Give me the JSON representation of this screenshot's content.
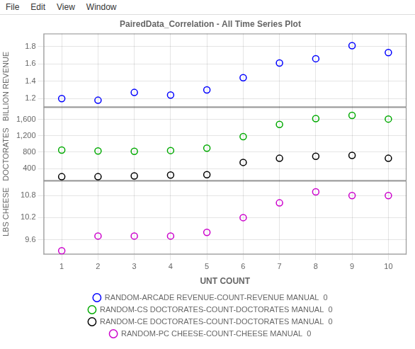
{
  "chart_data": [
    {
      "type": "scatter",
      "title": "PairedData_Correlation - All Time Series Plot",
      "annotations": [
        "File",
        "Edit",
        "View",
        "Window"
      ],
      "ylabel": "LBS CHEESE   DOCTORATES   BILLION REVENUE",
      "legend": "bottom",
      "marker": "circle",
      "grid": true,
      "tick_labels": "y",
      "x": [
        1,
        2,
        3,
        4,
        5,
        6,
        7,
        8,
        9,
        10
      ],
      "ylim": [
        1.1,
        1.95
      ],
      "yticks": [
        1.2,
        1.4,
        1.6,
        1.8
      ],
      "series": [
        {
          "name": "RANDOM-ARCADE REVENUE-COUNT-REVENUE MANUAL  0",
          "color": "#0000FF",
          "values": [
            1.2,
            1.18,
            1.27,
            1.24,
            1.3,
            1.44,
            1.61,
            1.66,
            1.81,
            1.73
          ]
        }
      ]
    },
    {
      "type": "scatter",
      "marker": "circle",
      "grid": true,
      "tick_labels": "y",
      "x": [
        1,
        2,
        3,
        4,
        5,
        6,
        7,
        8,
        9,
        10
      ],
      "ylim": [
        100,
        1900
      ],
      "yticks": [
        400,
        800,
        {
          "value": 1200,
          "label": "1,200"
        },
        {
          "value": 1600,
          "label": "1,600"
        }
      ],
      "series": [
        {
          "name": "RANDOM-CS DOCTORATES-COUNT-DOCTORATES MANUAL  0",
          "color": "#00AA00",
          "values": [
            850,
            830,
            820,
            840,
            900,
            1180,
            1480,
            1620,
            1700,
            1610
          ]
        },
        {
          "name": "RANDOM-CE DOCTORATES-COUNT-DOCTORATES MANUAL  0",
          "color": "#000000",
          "values": [
            200,
            200,
            220,
            240,
            250,
            550,
            650,
            700,
            720,
            650
          ]
        }
      ]
    },
    {
      "type": "scatter",
      "marker": "circle",
      "grid": true,
      "tick_labels": true,
      "xlabel": "UNT COUNT",
      "x": [
        1,
        2,
        3,
        4,
        5,
        6,
        7,
        8,
        9,
        10
      ],
      "xlim": [
        0.5,
        10.5
      ],
      "xticks": [
        1,
        2,
        3,
        4,
        5,
        6,
        7,
        8,
        9,
        10
      ],
      "ylim": [
        9.2,
        11.2
      ],
      "yticks": [
        9.6,
        10.2,
        10.8
      ],
      "series": [
        {
          "name": "RANDOM-PC CHEESE-COUNT-CHEESE MANUAL  0",
          "color": "#CC00CC",
          "values": [
            9.3,
            9.7,
            9.7,
            9.7,
            9.8,
            10.2,
            10.6,
            10.9,
            10.8,
            10.8
          ]
        }
      ]
    }
  ]
}
